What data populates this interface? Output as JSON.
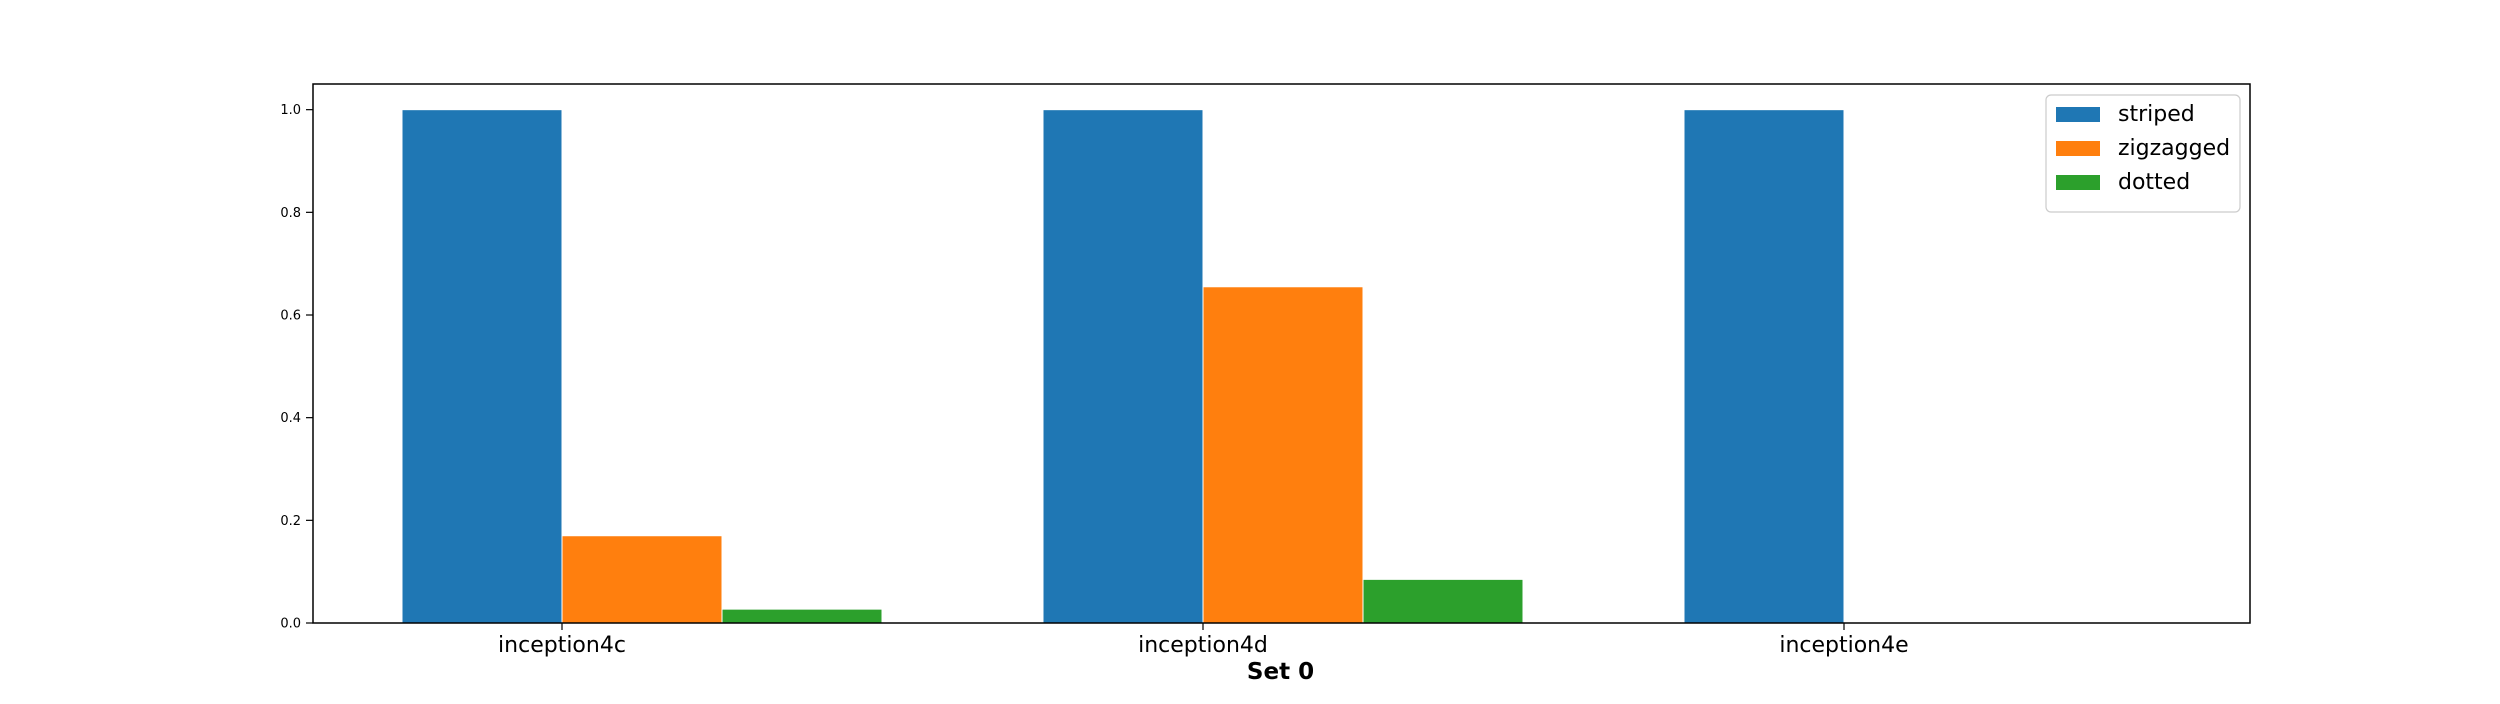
{
  "chart_data": {
    "type": "bar",
    "title": "",
    "xlabel": "Set 0",
    "ylabel": "",
    "categories": [
      "inception4c",
      "inception4d",
      "inception4e"
    ],
    "series": [
      {
        "name": "striped",
        "color": "#1f77b4",
        "values": [
          1.0,
          1.0,
          1.0
        ]
      },
      {
        "name": "zigzagged",
        "color": "#ff7f0e",
        "values": [
          0.17,
          0.655,
          0.0
        ]
      },
      {
        "name": "dotted",
        "color": "#2ca02c",
        "values": [
          0.027,
          0.085,
          0.0
        ]
      }
    ],
    "ylim": [
      0,
      1.05
    ],
    "yticks": [
      "0.0",
      "0.2",
      "0.4",
      "0.6",
      "0.8",
      "1.0"
    ],
    "legend_position": "top-right",
    "grid": false
  }
}
